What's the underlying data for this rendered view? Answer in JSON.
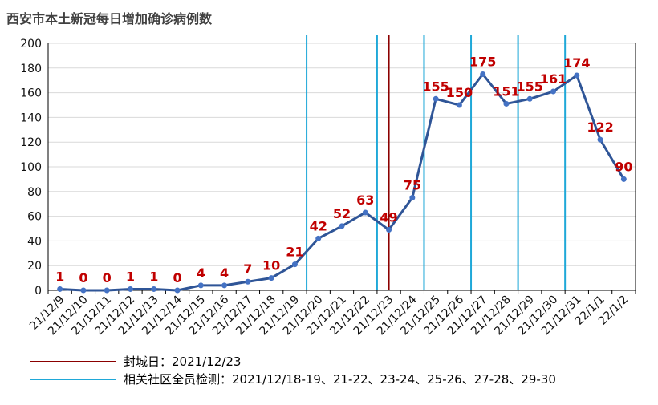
{
  "chart_data": {
    "type": "line",
    "title": "西安市本土新冠每日增加确诊病例数",
    "xlabel": "",
    "ylabel": "",
    "ylim": [
      0,
      200
    ],
    "yticks": [
      0,
      20,
      40,
      60,
      80,
      100,
      120,
      140,
      160,
      180,
      200
    ],
    "grid": true,
    "categories": [
      "21/12/9",
      "21/12/10",
      "21/12/11",
      "21/12/12",
      "21/12/13",
      "21/12/14",
      "21/12/15",
      "21/12/16",
      "21/12/17",
      "21/12/18",
      "21/12/19",
      "21/12/20",
      "21/12/21",
      "21/12/22",
      "21/12/23",
      "21/12/24",
      "21/12/25",
      "21/12/26",
      "21/12/27",
      "21/12/28",
      "21/12/29",
      "21/12/30",
      "21/12/31",
      "22/1/1",
      "22/1/2"
    ],
    "series": [
      {
        "values": [
          1,
          0,
          0,
          1,
          1,
          0,
          4,
          4,
          7,
          10,
          21,
          42,
          52,
          63,
          49,
          75,
          155,
          150,
          175,
          151,
          155,
          161,
          174,
          122,
          90
        ],
        "color": "#2f5597"
      }
    ],
    "annotations": {
      "lockdown": {
        "category": "21/12/23",
        "color": "#8b0000",
        "legend": "封城日：2021/12/23"
      },
      "testing": {
        "categories": [
          "21/12/19",
          "21/12/22",
          "21/12/24",
          "21/12/26",
          "21/12/28",
          "21/12/30"
        ],
        "color": "#1fa8d8",
        "legend": "相关社区全员检测：2021/12/18-19、21-22、23-24、25-26、27-28、29-30"
      }
    },
    "legend_position": "bottom-left"
  }
}
